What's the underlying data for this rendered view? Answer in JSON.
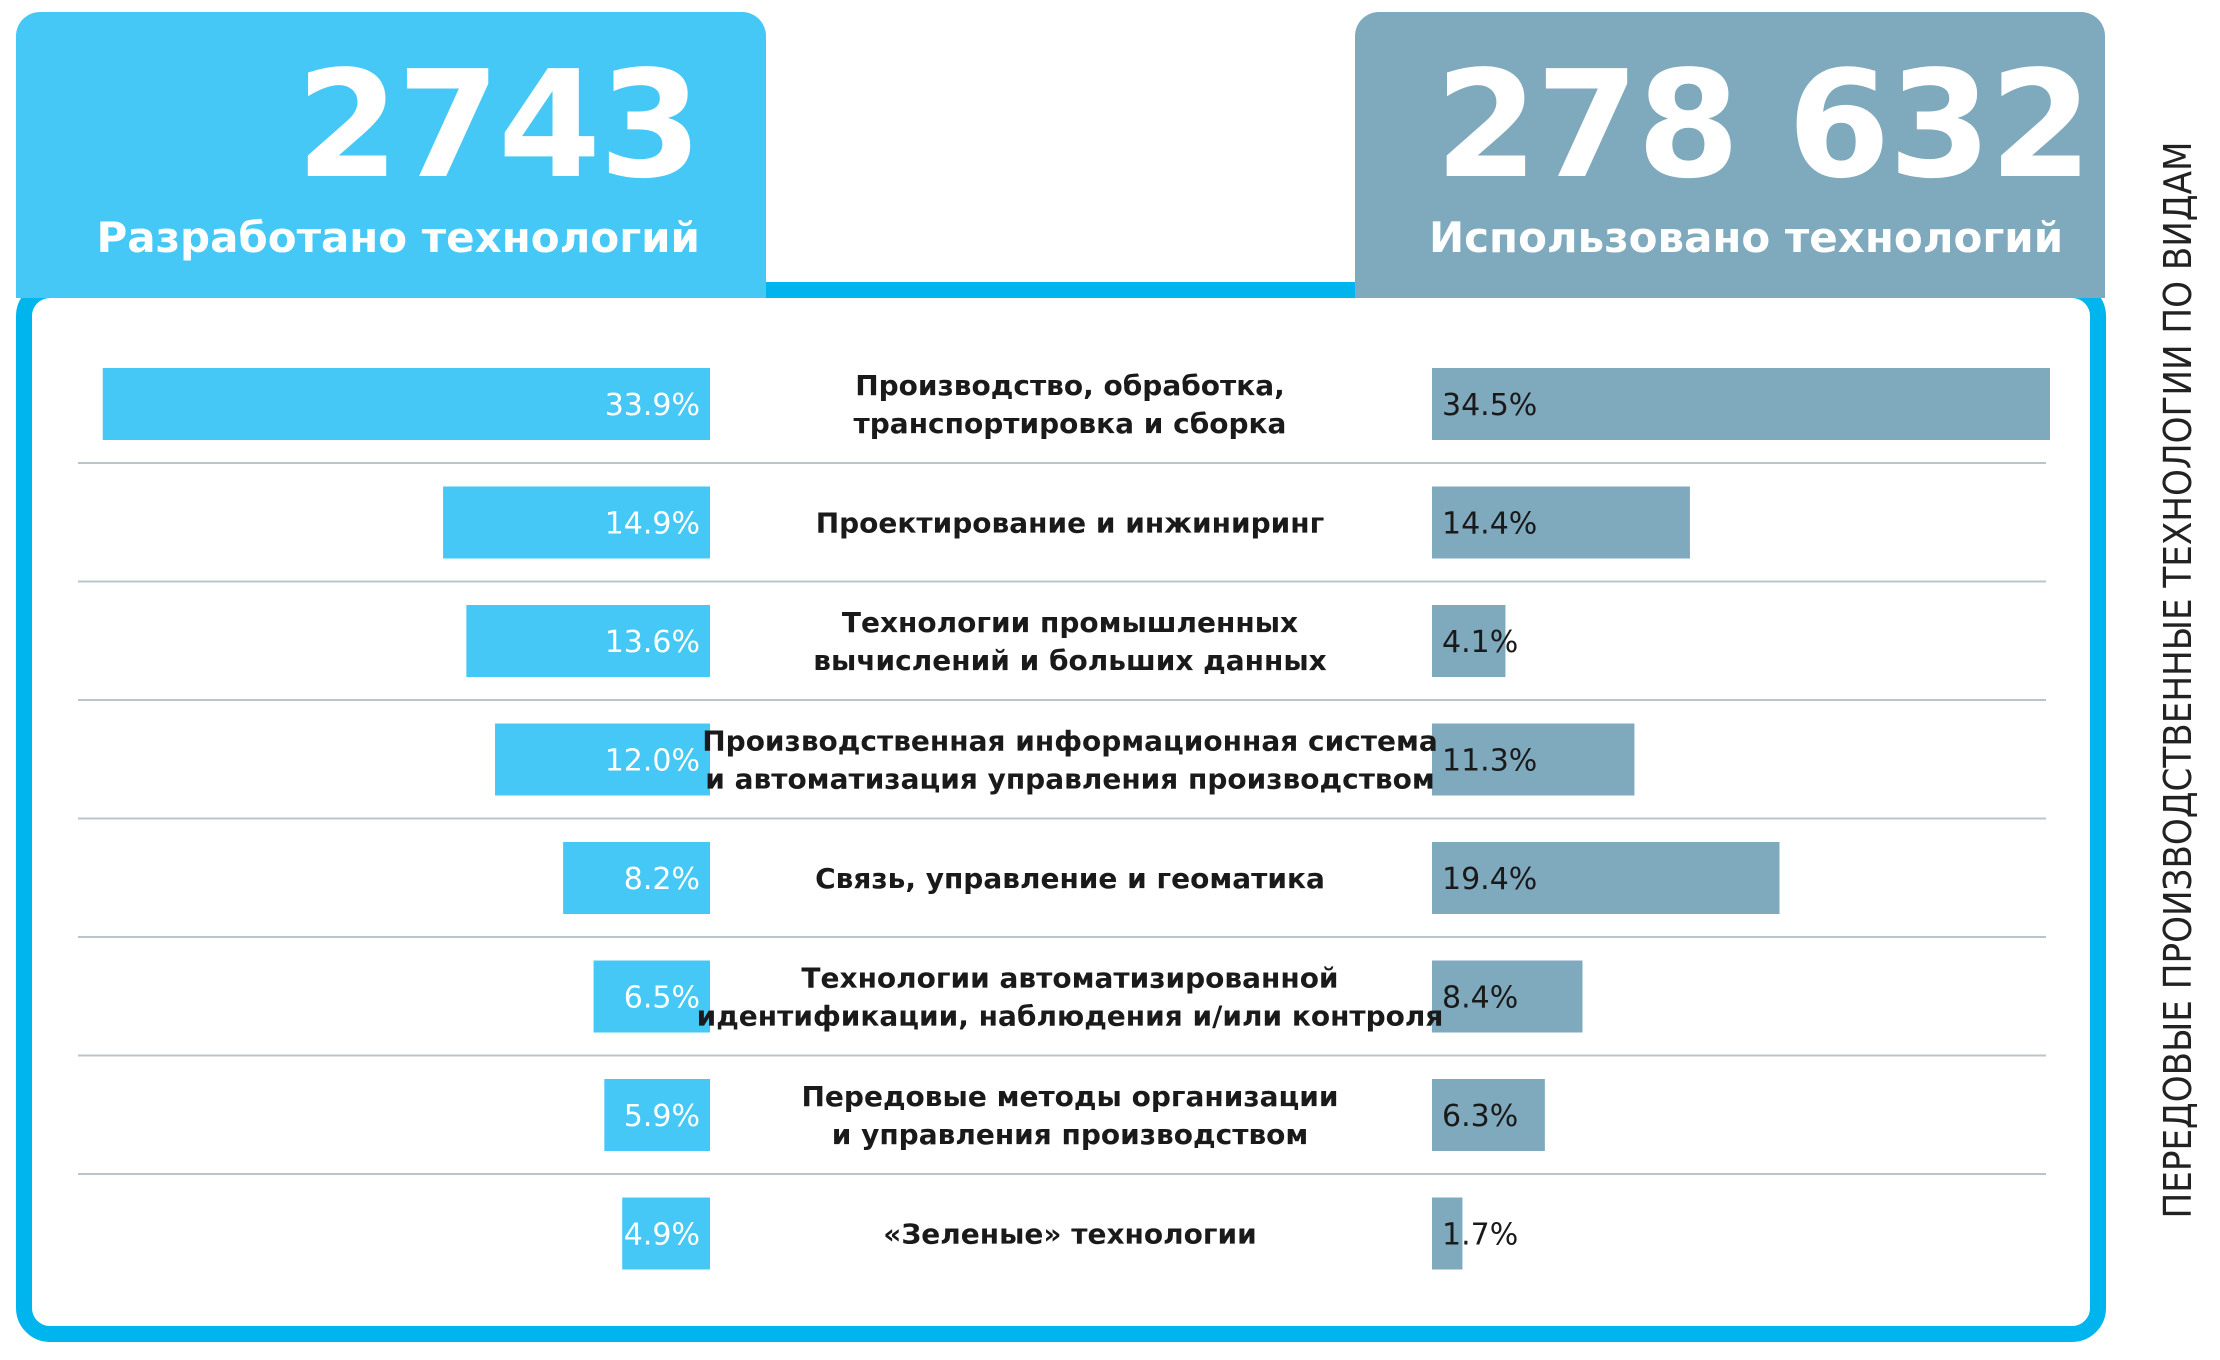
{
  "colors": {
    "developed": "#45c8f5",
    "used": "#7fa9bd",
    "frame": "#00b5ee",
    "separator": "#b8c6cc",
    "text": "#1a1a1a"
  },
  "side_title": "ПЕРЕДОВЫЕ ПРОИЗВОДСТВЕННЫЕ ТЕХНОЛОГИИ ПО ВИДАМ",
  "panels": {
    "developed": {
      "number": "2743",
      "label": "Разработано технологий"
    },
    "used": {
      "number": "278 632",
      "label": "Использовано технологий"
    }
  },
  "chart_data": {
    "type": "bar",
    "categories": [
      [
        "Производство, обработка,",
        "транспортировка и сборка"
      ],
      [
        "Проектирование и инжиниринг"
      ],
      [
        "Технологии промышленных",
        "вычислений и больших данных"
      ],
      [
        "Производственная информационная система",
        "и автоматизация управления производством"
      ],
      [
        "Связь, управление и геоматика"
      ],
      [
        "Технологии автоматизированной",
        "идентификации, наблюдения и/или контроля"
      ],
      [
        "Передовые методы организации",
        "и управления производством"
      ],
      [
        "«Зеленые» технологии"
      ]
    ],
    "series": [
      {
        "name": "Разработано технологий",
        "values": [
          33.9,
          14.9,
          13.6,
          12.0,
          8.2,
          6.5,
          5.9,
          4.9
        ],
        "labels": [
          "33.9%",
          "14.9%",
          "13.6%",
          "12.0%",
          "8.2%",
          "6.5%",
          "5.9%",
          "4.9%"
        ]
      },
      {
        "name": "Использовано технологий",
        "values": [
          34.5,
          14.4,
          4.1,
          11.3,
          19.4,
          8.4,
          6.3,
          1.7
        ],
        "labels": [
          "34.5%",
          "14.4%",
          "4.1%",
          "11.3%",
          "19.4%",
          "8.4%",
          "6.3%",
          "1.7%"
        ]
      }
    ],
    "xlim": [
      0,
      34.5
    ]
  }
}
